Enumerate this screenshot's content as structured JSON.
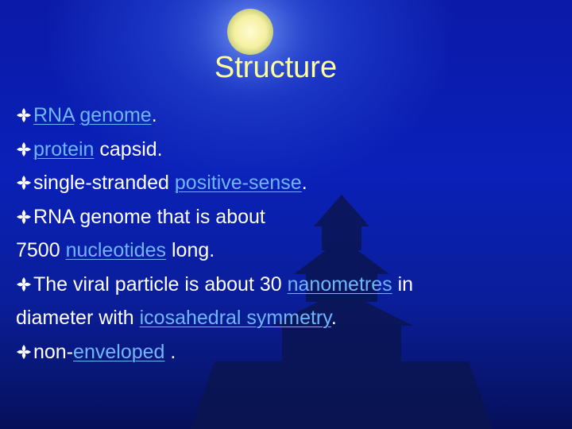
{
  "title": "Structure",
  "bullets": [
    {
      "lines": [
        [
          {
            "text": "RNA",
            "link": true
          },
          {
            "text": " "
          },
          {
            "text": "genome",
            "link": true
          },
          {
            "text": "."
          }
        ]
      ]
    },
    {
      "lines": [
        [
          {
            "text": "protein",
            "link": true
          },
          {
            "text": " capsid."
          }
        ]
      ]
    },
    {
      "lines": [
        [
          {
            "text": "single-stranded "
          },
          {
            "text": "positive-sense",
            "link": true
          },
          {
            "text": "."
          }
        ]
      ]
    },
    {
      "lines": [
        [
          {
            "text": "RNA genome that is about"
          }
        ],
        [
          {
            "text": "7500 "
          },
          {
            "text": "nucleotides",
            "link": true
          },
          {
            "text": " long."
          }
        ]
      ]
    },
    {
      "lines": [
        [
          {
            "text": "The viral particle is about 30 "
          },
          {
            "text": "nanometres",
            "link": true
          },
          {
            "text": " in"
          }
        ],
        [
          {
            "text": "diameter with "
          },
          {
            "text": "icosahedral symmetry",
            "link": true
          },
          {
            "text": "."
          }
        ]
      ]
    },
    {
      "lines": [
        [
          {
            "text": "non-"
          },
          {
            "text": "enveloped",
            "link": true
          },
          {
            "text": " ."
          }
        ]
      ]
    }
  ]
}
